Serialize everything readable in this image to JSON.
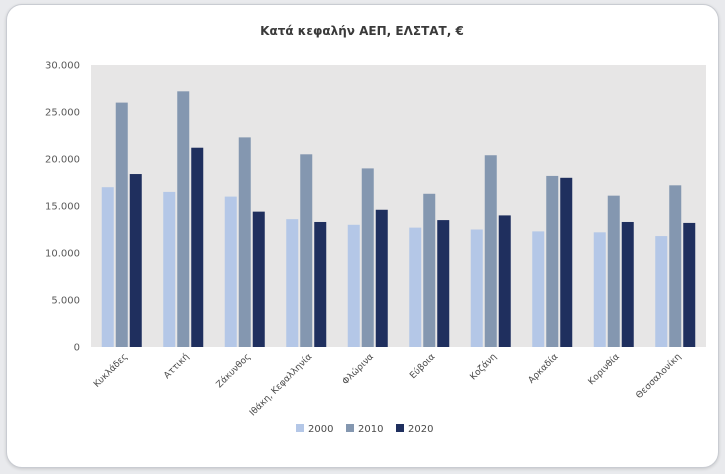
{
  "chart_data": {
    "type": "bar",
    "title": "Κατά κεφαλήν ΑΕΠ, ΕΛΣΤΑΤ, €",
    "xlabel": "",
    "ylabel": "",
    "ylim": [
      0,
      30000
    ],
    "y_ticks": [
      "0",
      "5.000",
      "10.000",
      "15.000",
      "20.000",
      "25.000",
      "30.000"
    ],
    "grid": false,
    "legend_position": "bottom",
    "categories": [
      "Κυκλάδες",
      "Αττική",
      "Ζάκυνθος",
      "Ιθάκη, Κεφαλληνία",
      "Φλώρινα",
      "Εύβοια",
      "Κοζάνη",
      "Αρκαδία",
      "Κορινθία",
      "Θεσσαλονίκη"
    ],
    "series": [
      {
        "name": "2000",
        "color": "#b4c7e7",
        "values": [
          17000,
          16500,
          16000,
          13600,
          13000,
          12700,
          12500,
          12300,
          12200,
          11800
        ]
      },
      {
        "name": "2010",
        "color": "#8497b0",
        "values": [
          26000,
          27200,
          22300,
          20500,
          19000,
          16300,
          20400,
          18200,
          16100,
          17200
        ]
      },
      {
        "name": "2020",
        "color": "#1f2f5e",
        "values": [
          18400,
          21200,
          14400,
          13300,
          14600,
          13500,
          14000,
          18000,
          13300,
          13200
        ]
      }
    ]
  }
}
